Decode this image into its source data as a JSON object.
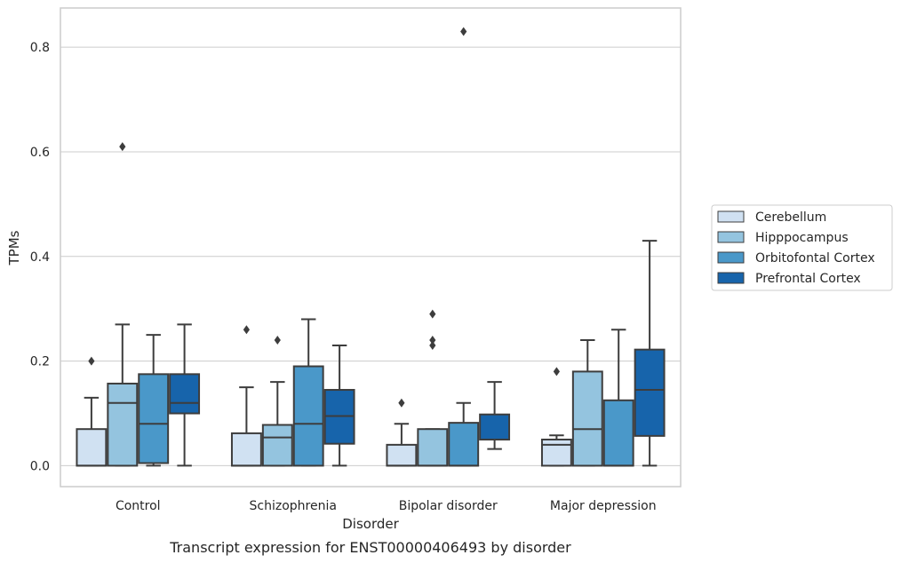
{
  "chart_data": {
    "type": "box",
    "title": "",
    "caption": "Transcript expression for ENST00000406493 by disorder",
    "xlabel": "Disorder",
    "ylabel": "TPMs",
    "ylim": [
      -0.04,
      0.875
    ],
    "yticks": [
      0.0,
      0.2,
      0.4,
      0.6,
      0.8
    ],
    "ytick_labels": [
      "0.0",
      "0.2",
      "0.4",
      "0.6",
      "0.8"
    ],
    "grid": "horizontal",
    "legend_position": "right",
    "categories": [
      "Control",
      "Schizophrenia",
      "Bipolar disorder",
      "Major depression"
    ],
    "series": [
      {
        "name": "Cerebellum",
        "color": "#d0e1f2",
        "boxes": [
          {
            "whisker_low": 0.0,
            "q1": 0.0,
            "median": 0.0,
            "q3": 0.07,
            "whisker_high": 0.13,
            "outliers": [
              0.2
            ]
          },
          {
            "whisker_low": 0.0,
            "q1": 0.0,
            "median": 0.0,
            "q3": 0.062,
            "whisker_high": 0.15,
            "outliers": [
              0.26
            ]
          },
          {
            "whisker_low": 0.0,
            "q1": 0.0,
            "median": 0.0,
            "q3": 0.04,
            "whisker_high": 0.08,
            "outliers": [
              0.12
            ]
          },
          {
            "whisker_low": 0.0,
            "q1": 0.0,
            "median": 0.04,
            "q3": 0.05,
            "whisker_high": 0.058,
            "outliers": [
              0.18
            ]
          }
        ]
      },
      {
        "name": "Hipppocampus",
        "color": "#94c4df",
        "boxes": [
          {
            "whisker_low": 0.0,
            "q1": 0.0,
            "median": 0.12,
            "q3": 0.157,
            "whisker_high": 0.27,
            "outliers": [
              0.61
            ]
          },
          {
            "whisker_low": 0.0,
            "q1": 0.0,
            "median": 0.054,
            "q3": 0.078,
            "whisker_high": 0.16,
            "outliers": [
              0.24
            ]
          },
          {
            "whisker_low": 0.0,
            "q1": 0.0,
            "median": 0.0,
            "q3": 0.07,
            "whisker_high": 0.07,
            "outliers": [
              0.23,
              0.24,
              0.29
            ]
          },
          {
            "whisker_low": 0.0,
            "q1": 0.0,
            "median": 0.07,
            "q3": 0.18,
            "whisker_high": 0.24,
            "outliers": []
          }
        ]
      },
      {
        "name": "Orbitofontal Cortex",
        "color": "#4a98c9",
        "boxes": [
          {
            "whisker_low": 0.0,
            "q1": 0.005,
            "median": 0.08,
            "q3": 0.175,
            "whisker_high": 0.25,
            "outliers": []
          },
          {
            "whisker_low": 0.0,
            "q1": 0.0,
            "median": 0.08,
            "q3": 0.19,
            "whisker_high": 0.28,
            "outliers": []
          },
          {
            "whisker_low": 0.0,
            "q1": 0.0,
            "median": 0.0,
            "q3": 0.082,
            "whisker_high": 0.12,
            "outliers": [
              0.83
            ]
          },
          {
            "whisker_low": 0.0,
            "q1": 0.0,
            "median": 0.0,
            "q3": 0.125,
            "whisker_high": 0.26,
            "outliers": []
          }
        ]
      },
      {
        "name": "Prefrontal Cortex",
        "color": "#1764ab",
        "boxes": [
          {
            "whisker_low": 0.0,
            "q1": 0.1,
            "median": 0.12,
            "q3": 0.175,
            "whisker_high": 0.27,
            "outliers": []
          },
          {
            "whisker_low": 0.0,
            "q1": 0.042,
            "median": 0.095,
            "q3": 0.145,
            "whisker_high": 0.23,
            "outliers": []
          },
          {
            "whisker_low": 0.032,
            "q1": 0.05,
            "median": 0.05,
            "q3": 0.098,
            "whisker_high": 0.16,
            "outliers": []
          },
          {
            "whisker_low": 0.0,
            "q1": 0.057,
            "median": 0.145,
            "q3": 0.222,
            "whisker_high": 0.43,
            "outliers": []
          }
        ]
      }
    ]
  }
}
